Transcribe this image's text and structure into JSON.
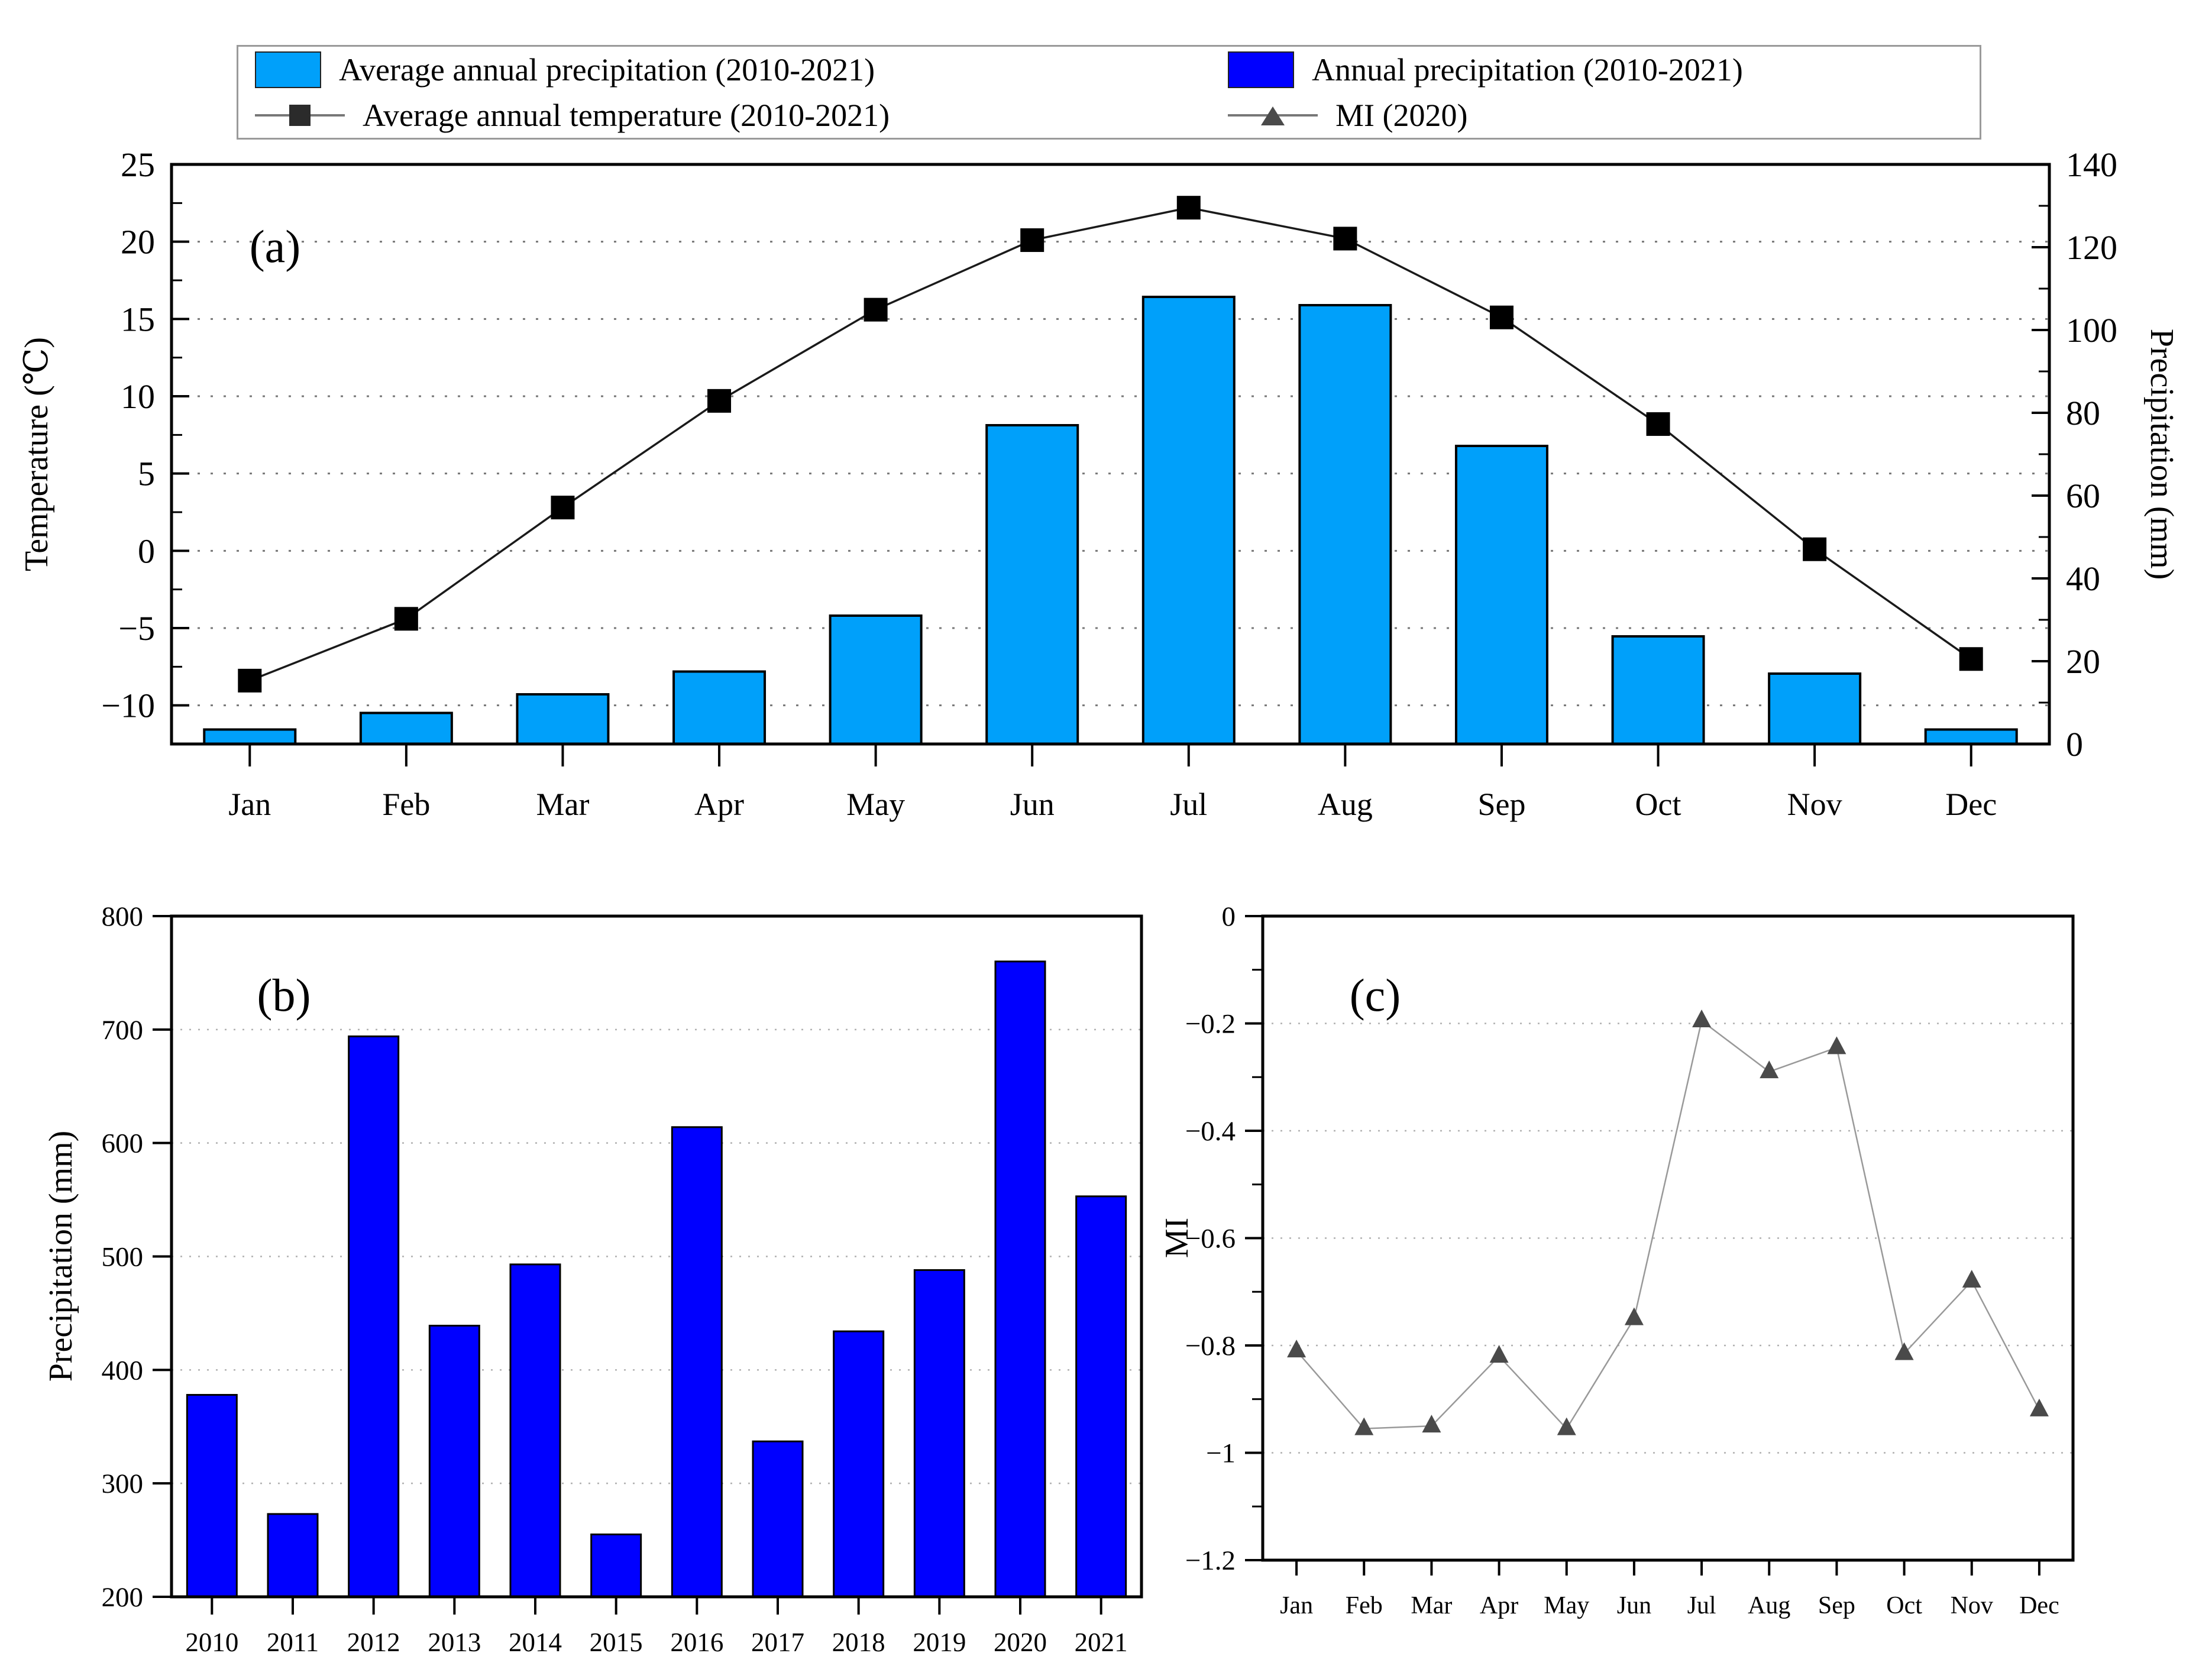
{
  "legend": {
    "items": [
      {
        "label": "Average annual precipitation (2010-2021)",
        "swatch": "rect",
        "color": "#00A0FA"
      },
      {
        "label": "Annual precipitation (2010-2021)",
        "swatch": "rect",
        "color": "#0000FF"
      },
      {
        "label": "Average annual temperature (2010-2021)",
        "swatch": "line-square",
        "line_color": "#777777",
        "marker_color": "#2b2b2b"
      },
      {
        "label": "MI (2020)",
        "swatch": "line-triangle",
        "line_color": "#777777",
        "marker_color": "#4a4a4a"
      }
    ]
  },
  "chart_data": [
    {
      "panel": "(a)",
      "type": "bar-line",
      "categories": [
        "Jan",
        "Feb",
        "Mar",
        "Apr",
        "May",
        "Jun",
        "Jul",
        "Aug",
        "Sep",
        "Oct",
        "Nov",
        "Dec"
      ],
      "series": [
        {
          "name": "Average annual precipitation (2010-2021)",
          "type": "bar",
          "axis": "right",
          "color": "#00A0FA",
          "edge_color": "#000000",
          "values": [
            3.5,
            7.5,
            12,
            17.5,
            31,
            77,
            108,
            106,
            72,
            26,
            17,
            3.5
          ]
        },
        {
          "name": "Average annual temperature (2010-2021)",
          "type": "line",
          "axis": "left",
          "color": "#1a1a1a",
          "marker": "square",
          "marker_color": "#000000",
          "values": [
            -8.4,
            -4.4,
            2.8,
            9.7,
            15.6,
            20.1,
            22.2,
            20.2,
            15.1,
            8.2,
            0.1,
            -7.0
          ]
        }
      ],
      "left_axis": {
        "label": "Temperature (℃)",
        "min": -12.5,
        "max": 25,
        "ticks": [
          {
            "v": 25,
            "label": "25"
          },
          {
            "v": 20,
            "label": "20"
          },
          {
            "v": 15,
            "label": "15"
          },
          {
            "v": 10,
            "label": "10"
          },
          {
            "v": 5,
            "label": "5"
          },
          {
            "v": 0,
            "label": "0"
          },
          {
            "v": -5,
            "label": "−5"
          },
          {
            "v": -10,
            "label": "−10"
          }
        ],
        "minor_ticks": [
          22.5,
          17.5,
          12.5,
          7.5,
          2.5,
          -2.5,
          -7.5
        ]
      },
      "right_axis": {
        "label": "Precipitation (mm)",
        "min": 0,
        "max": 140,
        "ticks": [
          {
            "v": 140,
            "label": "140"
          },
          {
            "v": 120,
            "label": "120"
          },
          {
            "v": 100,
            "label": "100"
          },
          {
            "v": 80,
            "label": "80"
          },
          {
            "v": 60,
            "label": "60"
          },
          {
            "v": 40,
            "label": "40"
          },
          {
            "v": 20,
            "label": "20"
          },
          {
            "v": 0,
            "label": "0"
          }
        ],
        "minor_ticks": [
          130,
          110,
          90,
          70,
          50,
          30,
          10
        ]
      },
      "gridlines": [
        20,
        15,
        10,
        5,
        0,
        -5,
        -10
      ],
      "gridline_color": "#787878"
    },
    {
      "panel": "(b)",
      "type": "bar",
      "categories": [
        "2010",
        "2011",
        "2012",
        "2013",
        "2014",
        "2015",
        "2016",
        "2017",
        "2018",
        "2019",
        "2020",
        "2021"
      ],
      "values": [
        378,
        273,
        694,
        439,
        493,
        255,
        614,
        337,
        434,
        488,
        760,
        553
      ],
      "ylabel": "Precipitation (mm)",
      "ylim": [
        200,
        800
      ],
      "yticks": [
        {
          "v": 800,
          "label": "800"
        },
        {
          "v": 700,
          "label": "700"
        },
        {
          "v": 600,
          "label": "600"
        },
        {
          "v": 500,
          "label": "500"
        },
        {
          "v": 400,
          "label": "400"
        },
        {
          "v": 300,
          "label": "300"
        },
        {
          "v": 200,
          "label": "200"
        }
      ],
      "gridlines": [
        700,
        600,
        500,
        400,
        300
      ],
      "gridline_color": "#b0b0b0",
      "color": "#0000FF",
      "edge_color": "#000000"
    },
    {
      "panel": "(c)",
      "type": "line",
      "name": "MI (2020)",
      "categories": [
        "Jan",
        "Feb",
        "Mar",
        "Apr",
        "May",
        "Jun",
        "Jul",
        "Aug",
        "Sep",
        "Oct",
        "Nov",
        "Dec"
      ],
      "values": [
        -0.81,
        -0.955,
        -0.95,
        -0.82,
        -0.955,
        -0.75,
        -0.195,
        -0.29,
        -0.245,
        -0.815,
        -0.68,
        -0.92
      ],
      "ylabel": "MI",
      "ylim": [
        -1.2,
        0
      ],
      "yticks": [
        {
          "v": 0,
          "label": "0"
        },
        {
          "v": -0.2,
          "label": "−0.2"
        },
        {
          "v": -0.4,
          "label": "−0.4"
        },
        {
          "v": -0.6,
          "label": "−0.6"
        },
        {
          "v": -0.8,
          "label": "−0.8"
        },
        {
          "v": -1,
          "label": "−1"
        },
        {
          "v": -1.2,
          "label": "−1.2"
        }
      ],
      "y_minor_ticks": [
        -0.1,
        -0.3,
        -0.5,
        -0.7,
        -0.9,
        -1.1
      ],
      "gridlines": [
        -0.2,
        -0.4,
        -0.6,
        -0.8,
        -1
      ],
      "gridline_color": "#b0b0b0",
      "line_color": "#999999",
      "marker": "triangle",
      "marker_color": "#4a4a4a"
    }
  ]
}
